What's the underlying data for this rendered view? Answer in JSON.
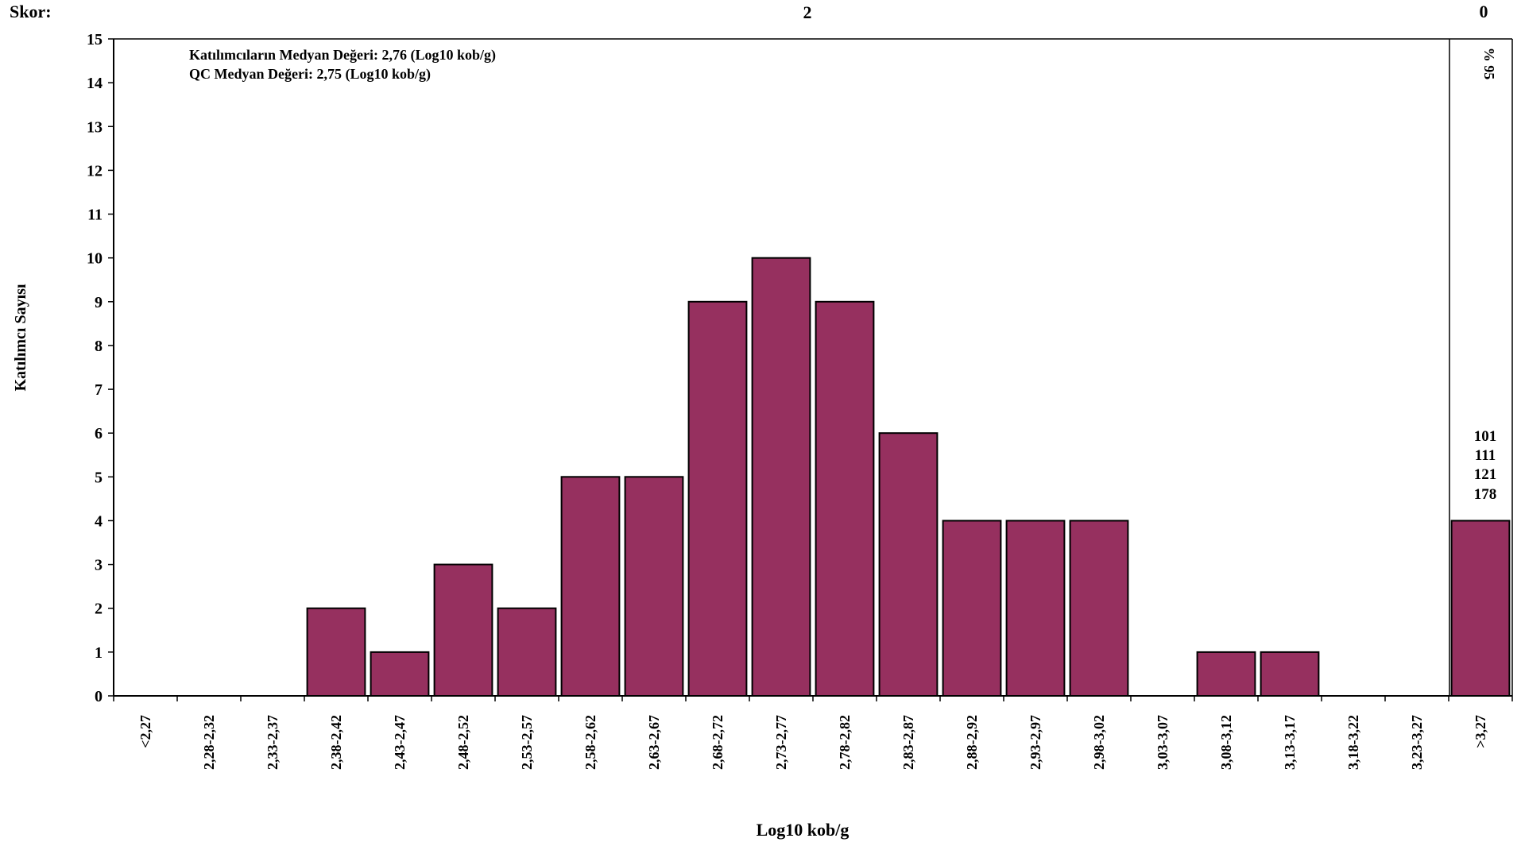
{
  "chart_data": {
    "type": "bar",
    "ylabel": "Katılımcı Sayısı",
    "xlabel": "Log10 kob/g",
    "ylim": [
      0,
      15
    ],
    "yticks": [
      "0",
      "1",
      "2",
      "3",
      "4",
      "5",
      "6",
      "7",
      "8",
      "9",
      "10",
      "11",
      "12",
      "13",
      "14",
      "15"
    ],
    "categories": [
      "<2,27",
      "2,28-2,32",
      "2,33-2,37",
      "2,38-2,42",
      "2,43-2,47",
      "2,48-2,52",
      "2,53-2,57",
      "2,58-2,62",
      "2,63-2,67",
      "2,68-2,72",
      "2,73-2,77",
      "2,78-2,82",
      "2,83-2,87",
      "2,88-2,92",
      "2,93-2,97",
      "2,98-3,02",
      "3,03-3,07",
      "3,08-3,12",
      "3,13-3,17",
      "3,18-3,22",
      "3,23-3,27",
      ">3,27"
    ],
    "values": [
      0,
      0,
      0,
      2,
      1,
      3,
      2,
      5,
      5,
      9,
      10,
      9,
      6,
      4,
      4,
      4,
      0,
      1,
      1,
      0,
      0,
      4
    ],
    "bar_color": "#96305f",
    "grid": false,
    "score_label": "Skor:",
    "score_main": "2",
    "score_outside": "0",
    "annotations": [
      "Katılımcıların Medyan Değeri: 2,76 (Log10 kob/g)",
      "QC Medyan Değeri: 2,75  (Log10 kob/g)"
    ],
    "percent_label": "% 95",
    "outlier_ids": [
      "101",
      "111",
      "121",
      "178"
    ]
  }
}
